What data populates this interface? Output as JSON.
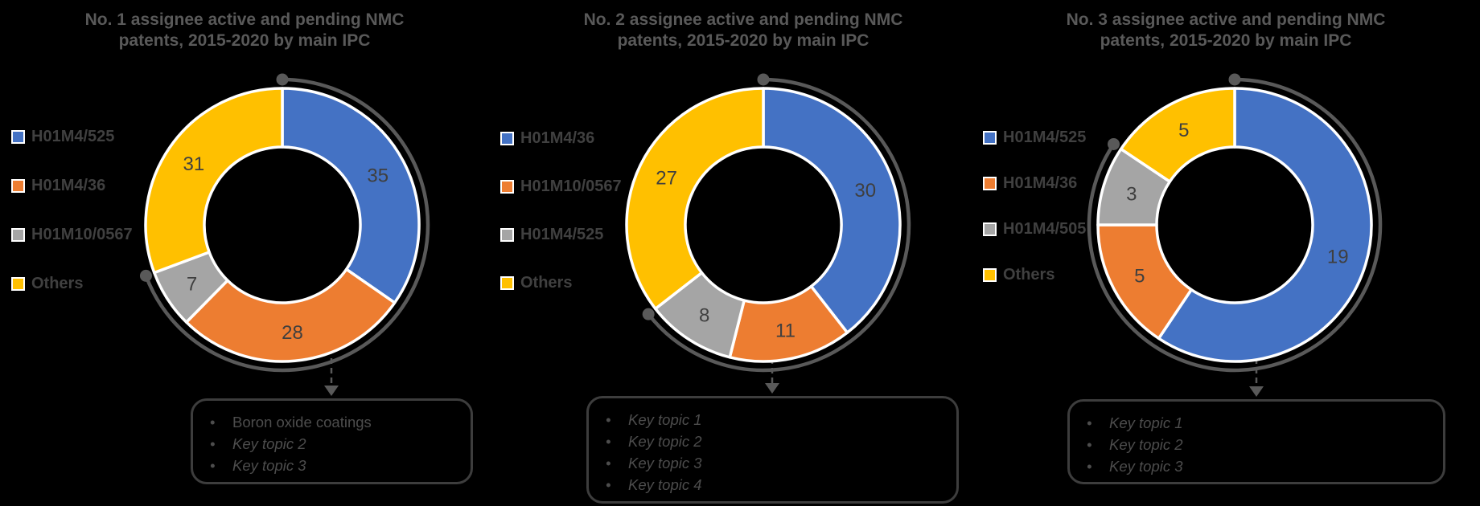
{
  "figure": {
    "background_color": "#000000",
    "description_visible_elements": "Three donut charts, each with left legend, data labels, an outer dark highlight arc with end dots spanning the named IPC segments, and a dashed arrow pointing to a rounded key-topics box"
  },
  "styles": {
    "title_color": "#595959",
    "legend_text_color": "#404040",
    "value_label_color": "#3f3f3f",
    "highlight_arc_color": "#595959",
    "box_border_color": "#3d3d3d",
    "bullet_text_color": "#4d4d4d",
    "segment_border_color": "#ffffff",
    "series_blue": "#4472C4",
    "series_orange": "#ED7D31",
    "series_gray": "#A5A5A5",
    "series_yellow": "#FFC000"
  },
  "chart_data": [
    {
      "type": "pie",
      "subtype": "donut",
      "title": "No. 1 assignee active and pending NMC patents, 2015-2020 by main IPC",
      "title_lines": [
        "No. 1 assignee active and pending NMC",
        "patents, 2015-2020 by main IPC"
      ],
      "categories": [
        "H01M4/525",
        "H01M4/36",
        "H01M10/0567",
        "Others"
      ],
      "values": [
        35,
        28,
        7,
        31
      ],
      "segment_colors": [
        "#4472C4",
        "#ED7D31",
        "#A5A5A5",
        "#FFC000"
      ],
      "legend_position": "left",
      "start_angle_deg": 0,
      "direction": "clockwise",
      "data_labels": true,
      "highlight_arc": "outer arc with end dots spans the three named IPC segments (excludes Others)",
      "key_topics": [
        {
          "text": "Boron oxide coatings",
          "italic": false
        },
        {
          "text": "Key topic 2",
          "italic": true
        },
        {
          "text": "Key topic 3",
          "italic": true
        }
      ]
    },
    {
      "type": "pie",
      "subtype": "donut",
      "title": "No. 2 assignee active and pending NMC patents, 2015-2020 by main IPC",
      "title_lines": [
        "No. 2 assignee active and pending NMC",
        "patents, 2015-2020 by main IPC"
      ],
      "categories": [
        "H01M4/36",
        "H01M10/0567",
        "H01M4/525",
        "Others"
      ],
      "values": [
        30,
        11,
        8,
        27
      ],
      "segment_colors": [
        "#4472C4",
        "#ED7D31",
        "#A5A5A5",
        "#FFC000"
      ],
      "legend_position": "left",
      "start_angle_deg": 0,
      "direction": "clockwise",
      "data_labels": true,
      "highlight_arc": "outer arc with end dots spans the three named IPC segments (excludes Others)",
      "key_topics": [
        {
          "text": "Key topic 1",
          "italic": true
        },
        {
          "text": "Key topic 2",
          "italic": true
        },
        {
          "text": "Key topic 3",
          "italic": true
        },
        {
          "text": "Key topic 4",
          "italic": true
        }
      ]
    },
    {
      "type": "pie",
      "subtype": "donut",
      "title": "No. 3 assignee active and pending NMC patents, 2015-2020 by main IPC",
      "title_lines": [
        "No. 3 assignee active and pending NMC",
        "patents, 2015-2020 by main IPC"
      ],
      "categories": [
        "H01M4/525",
        "H01M4/36",
        "H01M4/505",
        "Others"
      ],
      "values": [
        19,
        5,
        3,
        5
      ],
      "segment_colors": [
        "#4472C4",
        "#ED7D31",
        "#A5A5A5",
        "#FFC000"
      ],
      "legend_position": "left",
      "start_angle_deg": 0,
      "direction": "clockwise",
      "data_labels": true,
      "highlight_arc": "outer arc with end dots spans the three named IPC segments (excludes Others)",
      "key_topics": [
        {
          "text": "Key topic 1",
          "italic": true
        },
        {
          "text": "Key topic 2",
          "italic": true
        },
        {
          "text": "Key topic 3",
          "italic": true
        }
      ]
    }
  ]
}
